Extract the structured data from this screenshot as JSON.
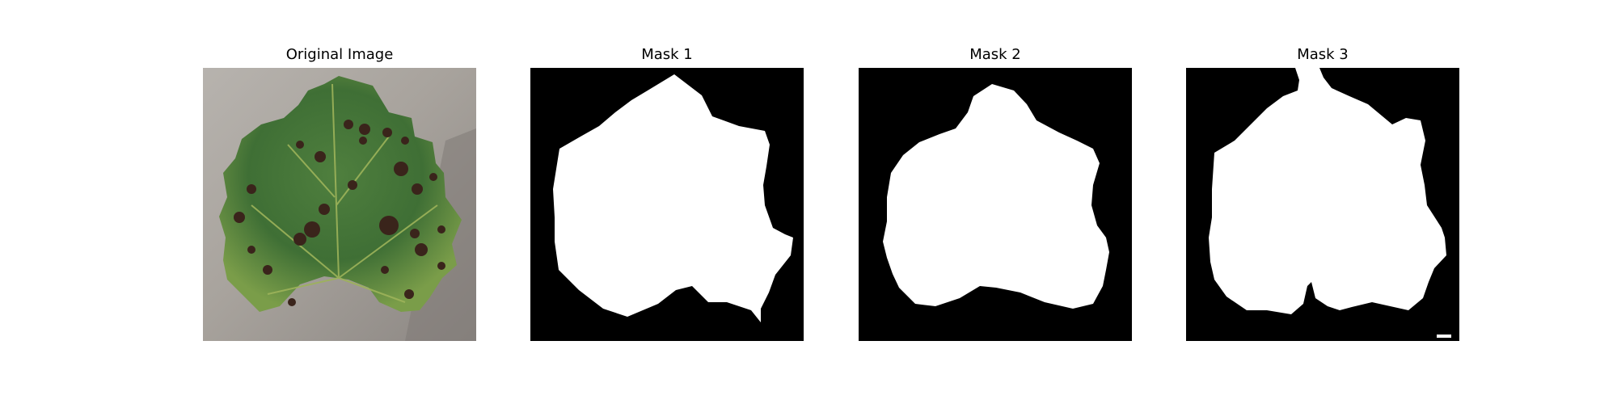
{
  "panels": [
    {
      "title": "Original Image"
    },
    {
      "title": "Mask 1"
    },
    {
      "title": "Mask 2"
    },
    {
      "title": "Mask 3"
    }
  ],
  "colors": {
    "background": "#ffffff",
    "mask_background": "#000000",
    "mask_foreground": "#ffffff",
    "leaf_dark": "#2f5f2c",
    "leaf_mid": "#4f7f3e",
    "leaf_light": "#7a9d49",
    "paper_dark": "#8c8783",
    "paper_light": "#b7b3ae",
    "spot": "#3a241b"
  }
}
